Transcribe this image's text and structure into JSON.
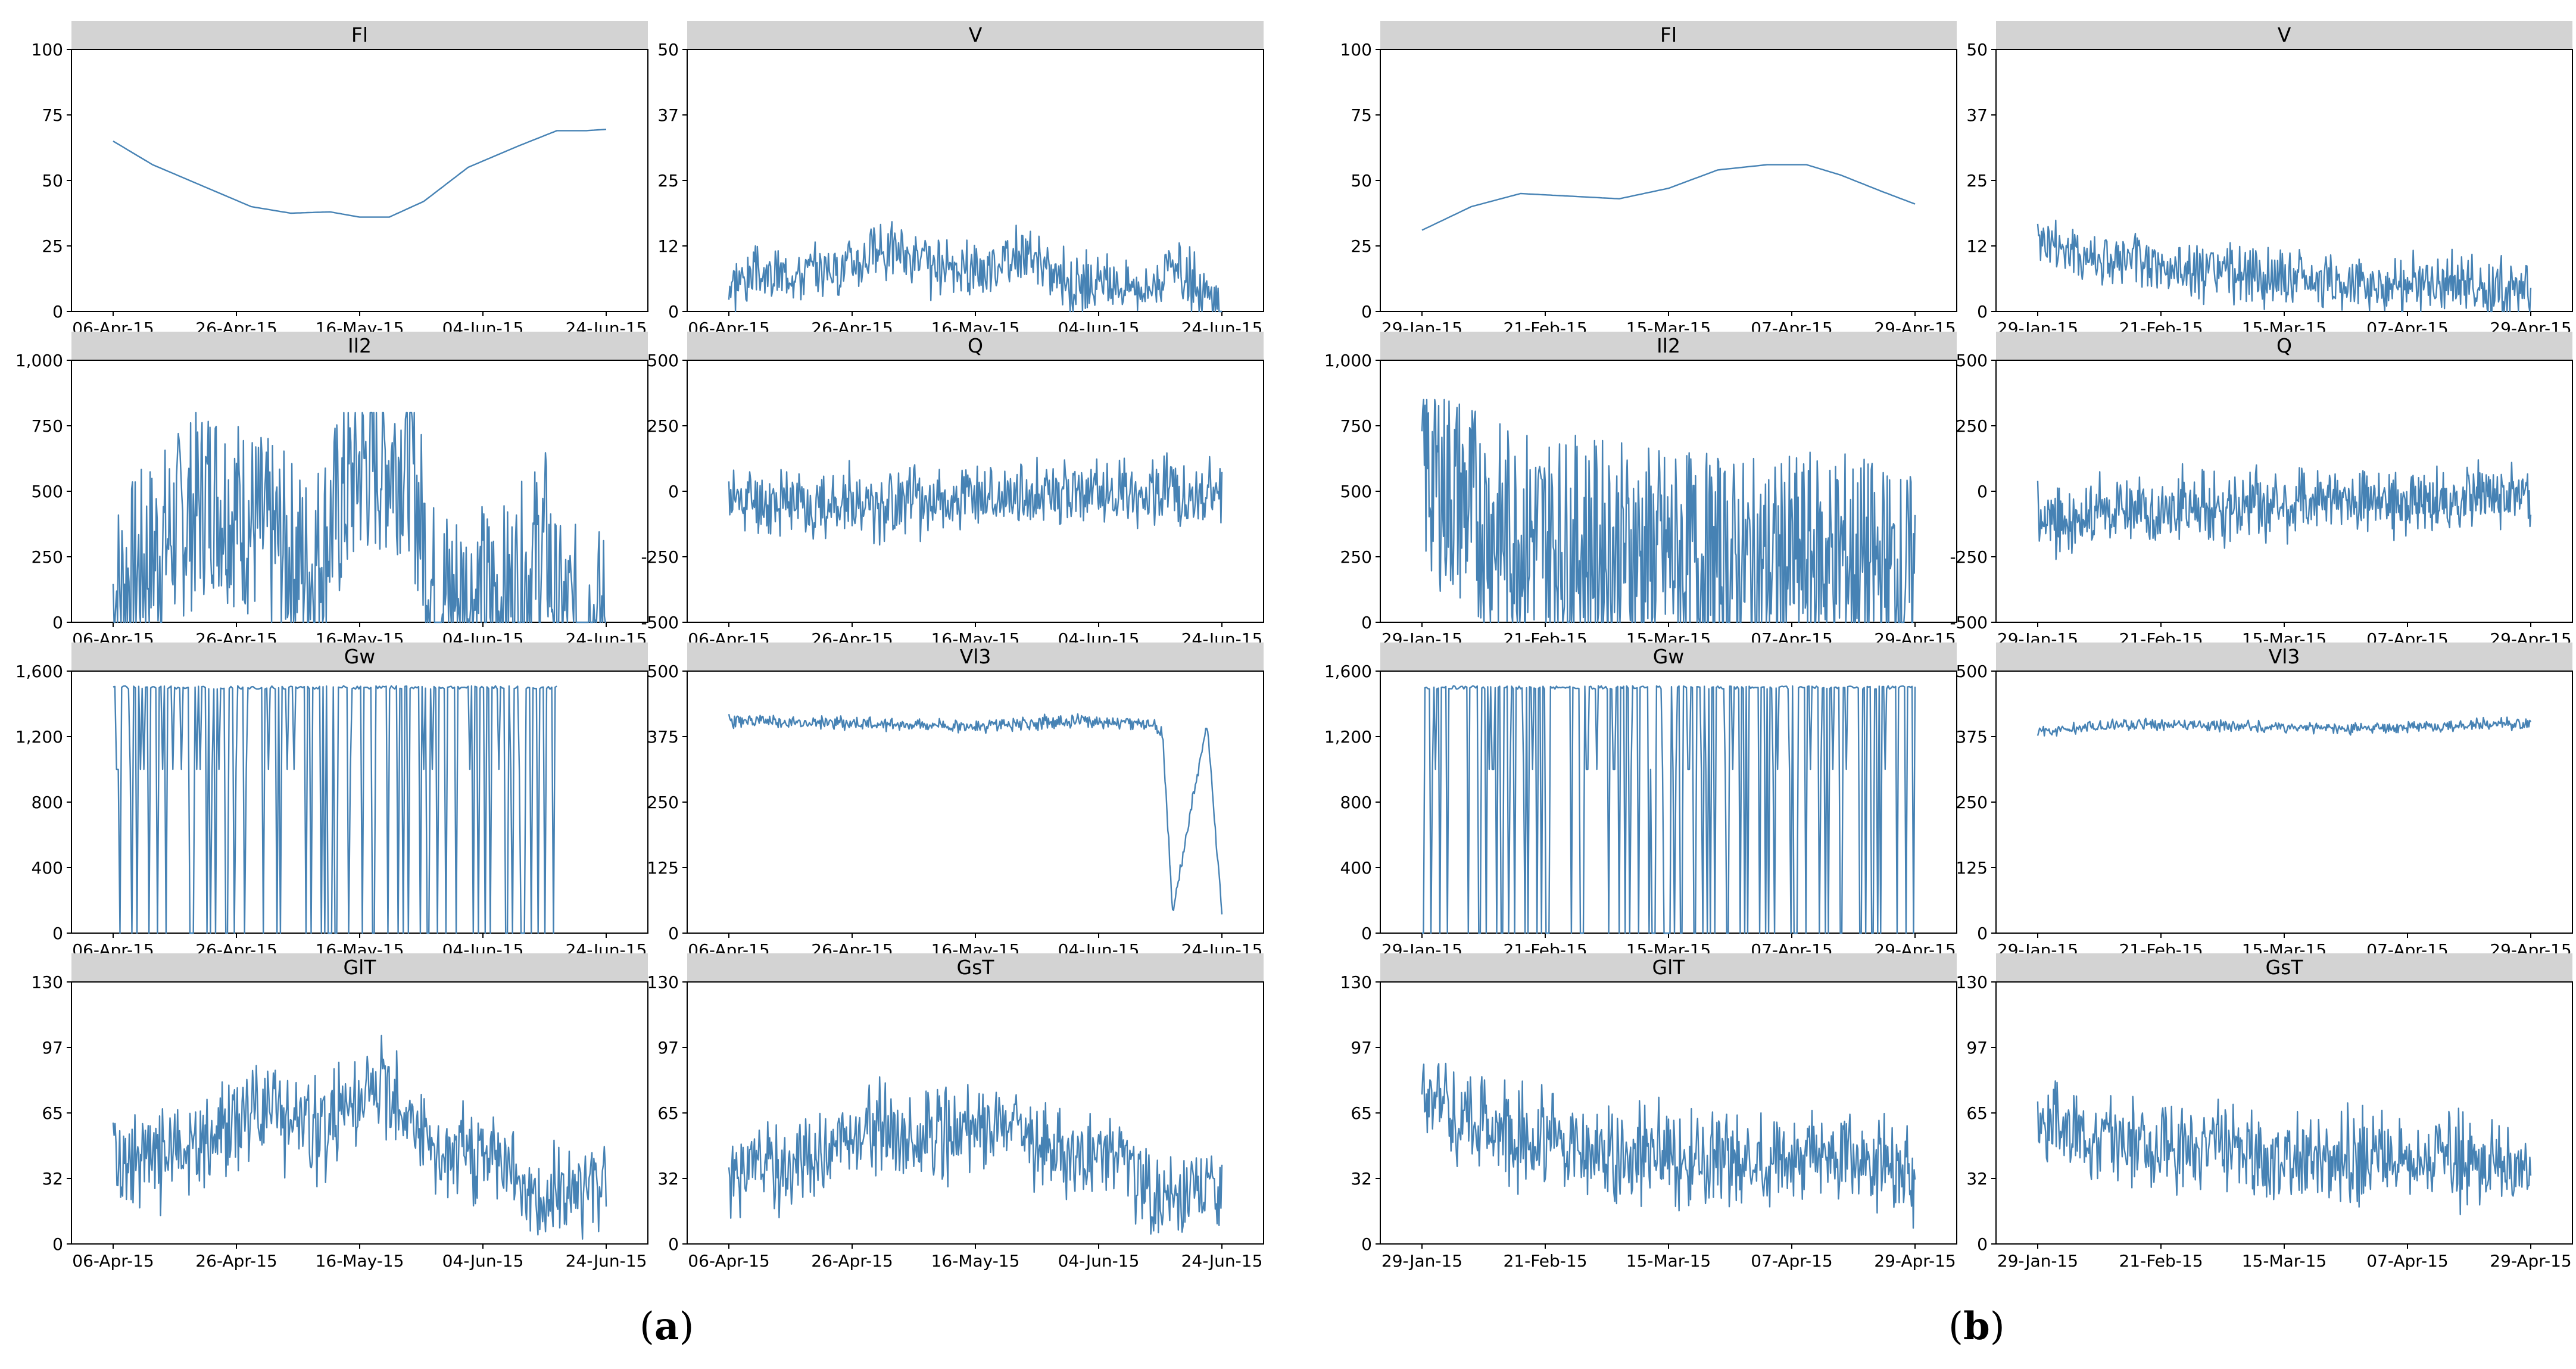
{
  "colors": {
    "line": "#4682b4",
    "strip": "#d3d3d3",
    "frame": "#000000"
  },
  "panel_labels": {
    "a": "a",
    "b": "b"
  },
  "chart_data": [
    {
      "panel": "a",
      "type": "line",
      "x_ticks": [
        "06-Apr-15",
        "26-Apr-15",
        "16-May-15",
        "04-Jun-15",
        "24-Jun-15"
      ],
      "subplots": [
        {
          "title": "Fl",
          "ylim": [
            0,
            100
          ],
          "yticks": [
            "0",
            "25",
            "50",
            "75",
            "100"
          ],
          "kind": "smooth",
          "points": [
            [
              0,
              65
            ],
            [
              0.08,
              56
            ],
            [
              0.18,
              48
            ],
            [
              0.28,
              40
            ],
            [
              0.36,
              37.5
            ],
            [
              0.44,
              38
            ],
            [
              0.5,
              36
            ],
            [
              0.56,
              36
            ],
            [
              0.63,
              42
            ],
            [
              0.72,
              55
            ],
            [
              0.82,
              63
            ],
            [
              0.9,
              69
            ],
            [
              0.96,
              69
            ],
            [
              1,
              69.5
            ]
          ]
        },
        {
          "title": "V",
          "ylim": [
            0,
            50
          ],
          "yticks": [
            "0",
            "12",
            "25",
            "37",
            "50"
          ],
          "kind": "noise",
          "base": [
            [
              0,
              6
            ],
            [
              0.2,
              8
            ],
            [
              0.33,
              12
            ],
            [
              0.45,
              7
            ],
            [
              0.6,
              11
            ],
            [
              0.7,
              5
            ],
            [
              0.85,
              5
            ],
            [
              0.9,
              8
            ],
            [
              1,
              1
            ]
          ],
          "amp": 5,
          "n": 520,
          "seed": 3
        },
        {
          "title": "Il2",
          "ylim": [
            0,
            1000
          ],
          "yticks": [
            "0",
            "250",
            "500",
            "750",
            "1,000"
          ],
          "kind": "spiky",
          "base": [
            [
              0,
              100
            ],
            [
              0.1,
              300
            ],
            [
              0.2,
              500
            ],
            [
              0.3,
              350
            ],
            [
              0.4,
              200
            ],
            [
              0.5,
              600
            ],
            [
              0.6,
              650
            ],
            [
              0.65,
              100
            ],
            [
              0.8,
              80
            ],
            [
              0.88,
              300
            ],
            [
              0.9,
              0
            ],
            [
              1,
              0
            ]
          ],
          "amp": 380,
          "n": 560,
          "seed": 7,
          "lo": 0,
          "hi": 800
        },
        {
          "title": "Q",
          "ylim": [
            -500,
            500
          ],
          "yticks": [
            "-500",
            "-250",
            "0",
            "250",
            "500"
          ],
          "kind": "noise",
          "base": [
            [
              0,
              -30
            ],
            [
              0.2,
              -50
            ],
            [
              0.4,
              -40
            ],
            [
              0.55,
              -20
            ],
            [
              0.7,
              -10
            ],
            [
              0.9,
              -5
            ],
            [
              1,
              0
            ]
          ],
          "amp": 120,
          "n": 520,
          "seed": 11
        },
        {
          "title": "Gw",
          "ylim": [
            0,
            1600
          ],
          "yticks": [
            "0",
            "400",
            "800",
            "1,200",
            "1,600"
          ],
          "kind": "drops",
          "level": 1500,
          "n": 260,
          "seed": 19,
          "lo": 0,
          "end": 0.9
        },
        {
          "title": "Vl3",
          "ylim": [
            0,
            500
          ],
          "yticks": [
            "0",
            "125",
            "250",
            "375",
            "500"
          ],
          "kind": "noise",
          "base": [
            [
              0,
              405
            ],
            [
              0.3,
              400
            ],
            [
              0.5,
              395
            ],
            [
              0.6,
              400
            ],
            [
              0.7,
              405
            ],
            [
              0.85,
              400
            ],
            [
              0.88,
              380
            ],
            [
              0.9,
              40
            ],
            [
              0.95,
              300
            ],
            [
              0.97,
              400
            ],
            [
              1,
              40
            ]
          ],
          "amp": 12,
          "n": 520,
          "seed": 23
        },
        {
          "title": "GlT",
          "ylim": [
            0,
            130
          ],
          "yticks": [
            "0",
            "32",
            "65",
            "97",
            "130"
          ],
          "kind": "noise",
          "base": [
            [
              0,
              40
            ],
            [
              0.15,
              45
            ],
            [
              0.3,
              70
            ],
            [
              0.4,
              55
            ],
            [
              0.5,
              70
            ],
            [
              0.56,
              80
            ],
            [
              0.65,
              45
            ],
            [
              0.8,
              45
            ],
            [
              0.86,
              20
            ],
            [
              0.9,
              25
            ],
            [
              1,
              30
            ]
          ],
          "amp": 22,
          "n": 520,
          "seed": 29
        },
        {
          "title": "GsT",
          "ylim": [
            0,
            130
          ],
          "yticks": [
            "0",
            "32",
            "65",
            "97",
            "130"
          ],
          "kind": "noise",
          "base": [
            [
              0,
              35
            ],
            [
              0.15,
              40
            ],
            [
              0.3,
              60
            ],
            [
              0.38,
              50
            ],
            [
              0.5,
              55
            ],
            [
              0.58,
              60
            ],
            [
              0.65,
              45
            ],
            [
              0.8,
              45
            ],
            [
              0.86,
              20
            ],
            [
              0.92,
              25
            ],
            [
              1,
              30
            ]
          ],
          "amp": 20,
          "n": 520,
          "seed": 31
        }
      ]
    },
    {
      "panel": "b",
      "type": "line",
      "x_ticks": [
        "29-Jan-15",
        "21-Feb-15",
        "15-Mar-15",
        "07-Apr-15",
        "29-Apr-15"
      ],
      "subplots": [
        {
          "title": "Fl",
          "ylim": [
            0,
            100
          ],
          "yticks": [
            "0",
            "25",
            "50",
            "75",
            "100"
          ],
          "kind": "smooth",
          "points": [
            [
              0,
              31
            ],
            [
              0.1,
              40
            ],
            [
              0.2,
              45
            ],
            [
              0.3,
              44
            ],
            [
              0.4,
              43
            ],
            [
              0.5,
              47
            ],
            [
              0.6,
              54
            ],
            [
              0.7,
              56
            ],
            [
              0.78,
              56
            ],
            [
              0.85,
              52
            ],
            [
              0.93,
              46
            ],
            [
              1,
              41
            ]
          ]
        },
        {
          "title": "V",
          "ylim": [
            0,
            50
          ],
          "yticks": [
            "0",
            "12",
            "25",
            "37",
            "50"
          ],
          "kind": "noise",
          "base": [
            [
              0,
              14
            ],
            [
              0.1,
              10
            ],
            [
              0.2,
              9
            ],
            [
              0.35,
              7
            ],
            [
              0.5,
              6
            ],
            [
              0.7,
              5
            ],
            [
              0.85,
              5
            ],
            [
              1,
              4
            ]
          ],
          "amp": 5,
          "n": 520,
          "seed": 41
        },
        {
          "title": "Il2",
          "ylim": [
            0,
            1000
          ],
          "yticks": [
            "0",
            "250",
            "500",
            "750",
            "1,000"
          ],
          "kind": "spiky",
          "base": [
            [
              0,
              600
            ],
            [
              0.15,
              350
            ],
            [
              0.3,
              300
            ],
            [
              0.5,
              250
            ],
            [
              0.7,
              200
            ],
            [
              0.85,
              250
            ],
            [
              1,
              150
            ]
          ],
          "amp": 420,
          "n": 620,
          "seed": 43,
          "lo": 0,
          "hi": 850
        },
        {
          "title": "Q",
          "ylim": [
            -500,
            500
          ],
          "yticks": [
            "-500",
            "-250",
            "0",
            "250",
            "500"
          ],
          "kind": "noise",
          "base": [
            [
              0,
              -120
            ],
            [
              0.2,
              -60
            ],
            [
              0.4,
              -60
            ],
            [
              0.6,
              -40
            ],
            [
              0.8,
              -30
            ],
            [
              1,
              -20
            ]
          ],
          "amp": 120,
          "n": 620,
          "seed": 47
        },
        {
          "title": "Gw",
          "ylim": [
            0,
            1600
          ],
          "yticks": [
            "0",
            "400",
            "800",
            "1,200",
            "1,600"
          ],
          "kind": "drops",
          "level": 1500,
          "n": 330,
          "seed": 53,
          "lo": 0,
          "end": 1
        },
        {
          "title": "Vl3",
          "ylim": [
            0,
            500
          ],
          "yticks": [
            "0",
            "125",
            "250",
            "375",
            "500"
          ],
          "kind": "noise",
          "base": [
            [
              0,
              385
            ],
            [
              0.2,
              400
            ],
            [
              0.4,
              395
            ],
            [
              0.6,
              390
            ],
            [
              0.8,
              395
            ],
            [
              1,
              400
            ]
          ],
          "amp": 10,
          "n": 520,
          "seed": 59
        },
        {
          "title": "GlT",
          "ylim": [
            0,
            130
          ],
          "yticks": [
            "0",
            "32",
            "65",
            "97",
            "130"
          ],
          "kind": "noise",
          "base": [
            [
              0,
              70
            ],
            [
              0.15,
              55
            ],
            [
              0.3,
              50
            ],
            [
              0.5,
              42
            ],
            [
              0.7,
              40
            ],
            [
              0.85,
              45
            ],
            [
              1,
              30
            ]
          ],
          "amp": 22,
          "n": 560,
          "seed": 61
        },
        {
          "title": "GsT",
          "ylim": [
            0,
            130
          ],
          "yticks": [
            "0",
            "32",
            "65",
            "97",
            "130"
          ],
          "kind": "noise",
          "base": [
            [
              0,
              60
            ],
            [
              0.2,
              50
            ],
            [
              0.4,
              45
            ],
            [
              0.6,
              42
            ],
            [
              0.8,
              45
            ],
            [
              1,
              32
            ]
          ],
          "amp": 20,
          "n": 560,
          "seed": 67
        }
      ]
    }
  ]
}
